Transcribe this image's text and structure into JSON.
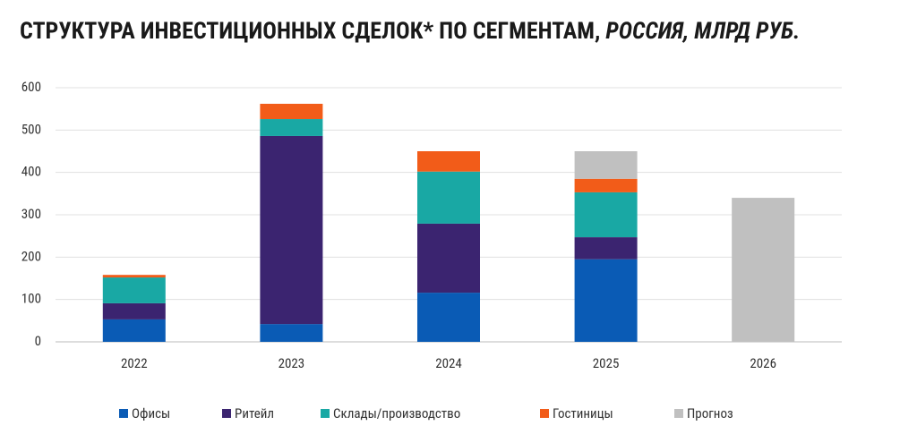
{
  "chart_data": {
    "type": "stacked_bar",
    "title": "СТРУКТУРА ИНВЕСТИЦИОННЫХ СДЕЛОК* ПО СЕГМЕНТАМ,",
    "subtitle": "РОССИЯ, МЛРД РУБ.",
    "categories": [
      "2022",
      "2023",
      "2024",
      "2025",
      "2026"
    ],
    "series": [
      {
        "name": "Офисы",
        "color": "#0a5bb5",
        "values": [
          53,
          42,
          116,
          195,
          null
        ]
      },
      {
        "name": "Ритейл",
        "color": "#3b2470",
        "values": [
          38,
          444,
          163,
          52,
          null
        ]
      },
      {
        "name": "Склады/производство",
        "color": "#19a8a4",
        "values": [
          61,
          40,
          123,
          106,
          null
        ]
      },
      {
        "name": "Гостиницы",
        "color": "#f25c19",
        "values": [
          6,
          36,
          48,
          32,
          null
        ]
      },
      {
        "name": "Прогноз",
        "color": "#c0c0c0",
        "values": [
          null,
          null,
          null,
          65,
          340
        ]
      }
    ],
    "ylim": [
      0,
      600
    ],
    "yticks": [
      0,
      100,
      200,
      300,
      400,
      500,
      600
    ],
    "grid": true,
    "legend": "bottom"
  }
}
